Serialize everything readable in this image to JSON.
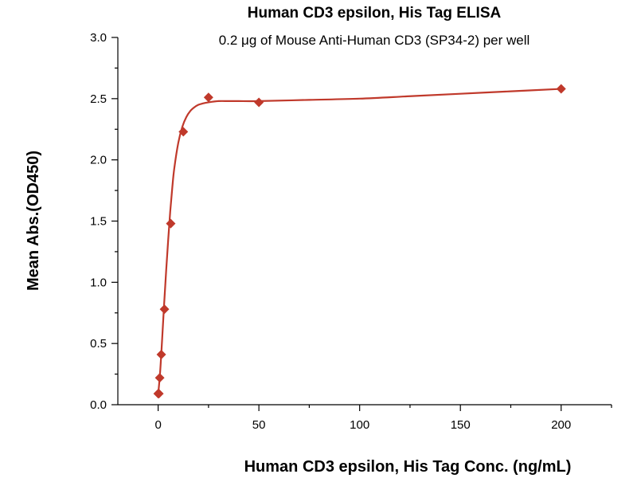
{
  "chart_data": {
    "type": "scatter",
    "title": "Human CD3 epsilon, His Tag ELISA",
    "subtitle": "0.2 μg of Mouse Anti-Human CD3 (SP34-2) per well",
    "xlabel": "Human CD3 epsilon, His Tag Conc. (ng/mL)",
    "ylabel": "Mean Abs.(OD450)",
    "xlim": [
      -20,
      225
    ],
    "ylim": [
      0.0,
      3.0
    ],
    "x_ticks": [
      0,
      50,
      100,
      150,
      200
    ],
    "x_tick_labels": [
      "0",
      "50",
      "100",
      "150",
      "200"
    ],
    "y_ticks": [
      0.0,
      0.5,
      1.0,
      1.5,
      2.0,
      2.5,
      3.0
    ],
    "y_tick_labels": [
      "0.0",
      "0.5",
      "1.0",
      "1.5",
      "2.0",
      "2.5",
      "3.0"
    ],
    "grid": false,
    "series": [
      {
        "marker": "diamond",
        "color": "#c0392b",
        "x": [
          0,
          0.39,
          0.78,
          1.56,
          3.13,
          6.25,
          12.5,
          25,
          50,
          200
        ],
        "y": [
          0.09,
          0.09,
          0.22,
          0.41,
          0.78,
          1.48,
          2.23,
          2.51,
          2.47,
          2.58
        ]
      }
    ],
    "curve": {
      "color": "#c0392b",
      "x": [
        0,
        1,
        2,
        3,
        4,
        5,
        6,
        7,
        8,
        10,
        12,
        14,
        16,
        18,
        20,
        22,
        25,
        30,
        35,
        40,
        50,
        75,
        100,
        125,
        150,
        175,
        200
      ],
      "y": [
        0.08,
        0.27,
        0.54,
        0.83,
        1.1,
        1.35,
        1.58,
        1.77,
        1.93,
        2.14,
        2.27,
        2.35,
        2.4,
        2.43,
        2.45,
        2.46,
        2.47,
        2.48,
        2.48,
        2.48,
        2.48,
        2.49,
        2.5,
        2.52,
        2.54,
        2.56,
        2.58
      ]
    }
  }
}
